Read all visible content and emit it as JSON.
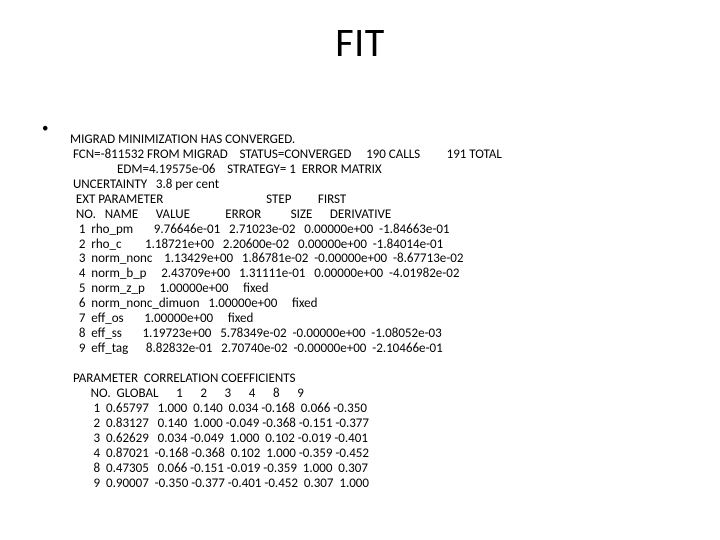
{
  "title": "FIT",
  "bullet": "•",
  "lines": {
    "l0": "MIGRAD MINIMIZATION HAS CONVERGED.",
    "l1": " FCN=-811532 FROM MIGRAD    STATUS=CONVERGED     190 CALLS         191 TOTAL",
    "l2": "                EDM=4.19575e-06    STRATEGY= 1  ERROR MATRIX",
    "l3": " UNCERTAINTY   3.8 per cent",
    "l4": "  EXT PARAMETER                                   STEP         FIRST",
    "l5": "  NO.   NAME      VALUE            ERROR          SIZE      DERIVATIVE",
    "l6": "   1  rho_pm       9.76646e-01   2.71023e-02   0.00000e+00  -1.84663e-01",
    "l7": "   2  rho_c        1.18721e+00   2.20600e-02   0.00000e+00  -1.84014e-01",
    "l8": "   3  norm_nonc    1.13429e+00   1.86781e-02  -0.00000e+00  -8.67713e-02",
    "l9": "   4  norm_b_p     2.43709e+00   1.31111e-01   0.00000e+00  -4.01982e-02",
    "l10": "   5  norm_z_p     1.00000e+00     fixed",
    "l11": "   6  norm_nonc_dimuon   1.00000e+00     fixed",
    "l12": "   7  eff_os       1.00000e+00     fixed",
    "l13": "   8  eff_ss       1.19723e+00   5.78349e-02  -0.00000e+00  -1.08052e-03",
    "l14": "   9  eff_tag      8.82832e-01   2.70740e-02  -0.00000e+00  -2.10466e-01",
    "l15": "",
    "l16": " PARAMETER  CORRELATION COEFFICIENTS",
    "l17": "       NO.  GLOBAL      1      2      3      4      8      9",
    "l18": "        1  0.65797   1.000  0.140  0.034 -0.168  0.066 -0.350",
    "l19": "        2  0.83127   0.140  1.000 -0.049 -0.368 -0.151 -0.377",
    "l20": "        3  0.62629   0.034 -0.049  1.000  0.102 -0.019 -0.401",
    "l21": "        4  0.87021  -0.168 -0.368  0.102  1.000 -0.359 -0.452",
    "l22": "        8  0.47305   0.066 -0.151 -0.019 -0.359  1.000  0.307",
    "l23": "        9  0.90007  -0.350 -0.377 -0.401 -0.452  0.307  1.000"
  },
  "style": {
    "background_color": "#ffffff",
    "text_color": "#000000",
    "title_fontsize_pt": 40,
    "body_fontsize_pt": 13,
    "font_family": "Calibri"
  }
}
